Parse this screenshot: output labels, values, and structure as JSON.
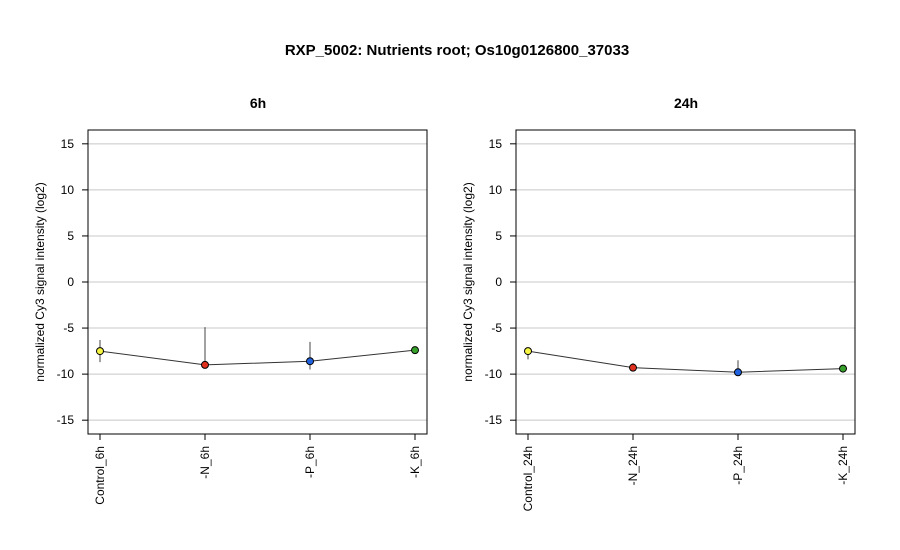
{
  "figure": {
    "title": "RXP_5002: Nutrients root; Os10g0126800_37033"
  },
  "chart_data": [
    {
      "type": "line",
      "title": "6h",
      "xlabel": "",
      "ylabel": "normalized Cy3 signal intensity (log2)",
      "ylim": [
        -16.5,
        16.5
      ],
      "yticks": [
        -15,
        -10,
        -5,
        0,
        5,
        10,
        15
      ],
      "ytick_labels": [
        "-15",
        "-10",
        "-5",
        "0",
        "5",
        "10",
        "15"
      ],
      "grid": true,
      "categories": [
        "Control_6h",
        "-N_6h",
        "-P_6h",
        "-K_6h"
      ],
      "values": [
        -7.5,
        -9.0,
        -8.6,
        -7.4
      ],
      "error_low": [
        -8.7,
        -9.3,
        -9.5,
        -7.6
      ],
      "error_high": [
        -6.3,
        -4.9,
        -6.5,
        -7.2
      ],
      "colors": [
        "#f5f542",
        "#e0301e",
        "#2162e0",
        "#35a02a"
      ]
    },
    {
      "type": "line",
      "title": "24h",
      "xlabel": "",
      "ylabel": "normalized Cy3 signal intensity (log2)",
      "ylim": [
        -16.5,
        16.5
      ],
      "yticks": [
        -15,
        -10,
        -5,
        0,
        5,
        10,
        15
      ],
      "ytick_labels": [
        "-15",
        "-10",
        "-5",
        "0",
        "5",
        "10",
        "15"
      ],
      "grid": true,
      "categories": [
        "Control_24h",
        "-N_24h",
        "-P_24h",
        "-K_24h"
      ],
      "values": [
        -7.5,
        -9.3,
        -9.8,
        -9.4
      ],
      "error_low": [
        -8.4,
        -9.7,
        -10.0,
        -9.6
      ],
      "error_high": [
        -7.1,
        -8.8,
        -8.5,
        -9.1
      ],
      "colors": [
        "#f5f542",
        "#e0301e",
        "#2162e0",
        "#35a02a"
      ]
    }
  ]
}
